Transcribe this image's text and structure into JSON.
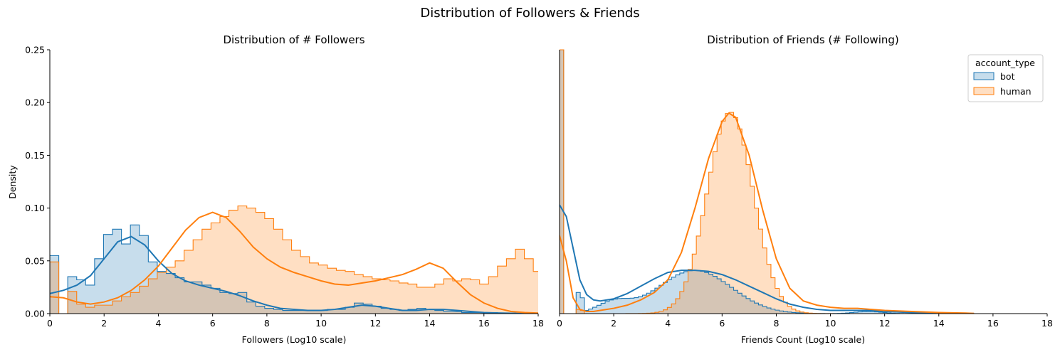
{
  "figure": {
    "suptitle": "Distribution of Followers & Friends"
  },
  "colors": {
    "bot": "#1f77b4",
    "human": "#ff7f0e",
    "bot_fill": "#c4d9ec",
    "human_fill": "#fedcbe"
  },
  "chart_data": [
    {
      "type": "area",
      "title": "Distribution of # Followers",
      "xlabel": "Followers (Log10 scale)",
      "ylabel": "Density",
      "xlim": [
        0,
        18
      ],
      "ylim": [
        0,
        0.25
      ],
      "xticks": [
        0,
        2,
        4,
        6,
        8,
        10,
        12,
        14,
        16,
        18
      ],
      "yticks": [
        "0.00",
        "0.05",
        "0.10",
        "0.15",
        "0.20",
        "0.25"
      ],
      "bin_width": 0.33,
      "series": [
        {
          "name": "bot",
          "kind": "histogram+kde",
          "hist": [
            0.055,
            0,
            0.035,
            0.032,
            0.027,
            0.052,
            0.075,
            0.08,
            0.066,
            0.084,
            0.074,
            0.049,
            0.04,
            0.038,
            0.034,
            0.03,
            0.03,
            0.027,
            0.024,
            0.02,
            0.019,
            0.02,
            0.011,
            0.007,
            0.005,
            0.004,
            0.003,
            0.003,
            0.003,
            0.003,
            0.003,
            0.004,
            0.004,
            0.006,
            0.01,
            0.009,
            0.007,
            0.005,
            0.004,
            0.003,
            0.004,
            0.005,
            0.004,
            0.003,
            0.002,
            0.002,
            0.001,
            0.001,
            0.001,
            0.001,
            0.0005,
            0.0005,
            0.0003,
            0.0002
          ],
          "kde_x": [
            0,
            0.5,
            1,
            1.5,
            2,
            2.5,
            3,
            3.5,
            4,
            4.5,
            5,
            5.5,
            6,
            6.5,
            7,
            7.5,
            8,
            8.5,
            9,
            9.5,
            10,
            10.5,
            11,
            11.5,
            12,
            12.5,
            13,
            13.5,
            14,
            14.5,
            15,
            15.5,
            16,
            16.5,
            17,
            17.5,
            18
          ],
          "kde_y": [
            0.019,
            0.022,
            0.027,
            0.036,
            0.052,
            0.068,
            0.073,
            0.065,
            0.05,
            0.038,
            0.031,
            0.027,
            0.024,
            0.021,
            0.017,
            0.012,
            0.008,
            0.005,
            0.004,
            0.003,
            0.003,
            0.004,
            0.006,
            0.008,
            0.007,
            0.005,
            0.003,
            0.003,
            0.004,
            0.004,
            0.003,
            0.002,
            0.001,
            0.0006,
            0.0003,
            0.0001,
            5e-05
          ]
        },
        {
          "name": "human",
          "kind": "histogram+kde",
          "hist": [
            0.049,
            0,
            0.021,
            0.009,
            0.006,
            0.008,
            0.008,
            0.012,
            0.016,
            0.02,
            0.026,
            0.033,
            0.039,
            0.044,
            0.05,
            0.06,
            0.07,
            0.08,
            0.086,
            0.092,
            0.098,
            0.102,
            0.1,
            0.096,
            0.09,
            0.08,
            0.07,
            0.06,
            0.054,
            0.048,
            0.046,
            0.043,
            0.041,
            0.04,
            0.037,
            0.035,
            0.033,
            0.032,
            0.031,
            0.029,
            0.028,
            0.025,
            0.025,
            0.028,
            0.033,
            0.031,
            0.033,
            0.032,
            0.028,
            0.035,
            0.045,
            0.052,
            0.061,
            0.052,
            0.04,
            0.029,
            0.02,
            0.015,
            0.013,
            0.01,
            0.008,
            0.006,
            0.004,
            0.003,
            0.002,
            0.001,
            0.001,
            0.001,
            0.0005,
            0.0005
          ],
          "kde_x": [
            0,
            0.5,
            1,
            1.5,
            2,
            2.5,
            3,
            3.5,
            4,
            4.5,
            5,
            5.5,
            6,
            6.5,
            7,
            7.5,
            8,
            8.5,
            9,
            9.5,
            10,
            10.5,
            11,
            11.5,
            12,
            12.5,
            13,
            13.5,
            14,
            14.5,
            15,
            15.5,
            16,
            16.5,
            17,
            17.5,
            18
          ],
          "kde_y": [
            0.016,
            0.015,
            0.011,
            0.009,
            0.011,
            0.015,
            0.022,
            0.032,
            0.045,
            0.062,
            0.079,
            0.091,
            0.096,
            0.091,
            0.078,
            0.063,
            0.052,
            0.044,
            0.039,
            0.035,
            0.031,
            0.028,
            0.027,
            0.029,
            0.031,
            0.034,
            0.037,
            0.042,
            0.048,
            0.043,
            0.03,
            0.018,
            0.01,
            0.005,
            0.002,
            0.001,
            0.0005
          ]
        }
      ]
    },
    {
      "type": "area",
      "title": "Distribution of Friends (# Following)",
      "xlabel": "Friends Count (Log10 scale)",
      "ylabel": "",
      "xlim": [
        0,
        18
      ],
      "ylim": [
        0,
        0.25
      ],
      "xticks": [
        0,
        2,
        4,
        6,
        8,
        10,
        12,
        14,
        16,
        18
      ],
      "bin_width": 0.153,
      "zero_bin_height": 0.3,
      "legend": {
        "title": "account_type",
        "placement": "top-right",
        "entries": [
          "bot",
          "human"
        ]
      },
      "series": [
        {
          "name": "bot",
          "kind": "histogram+kde",
          "peak": {
            "center": 5.0,
            "sd": 1.35,
            "height": 0.041
          },
          "tail_bump": {
            "center": 11.4,
            "sd": 0.5,
            "height": 0.002
          },
          "kde_x": [
            0,
            0.25,
            0.5,
            0.75,
            1,
            1.25,
            1.5,
            2,
            2.5,
            3,
            3.5,
            4,
            4.5,
            5,
            5.5,
            6,
            6.5,
            7,
            7.5,
            8,
            8.5,
            9,
            9.5,
            10,
            10.5,
            11,
            11.5,
            12,
            13,
            14,
            15,
            15.3
          ],
          "kde_y": [
            0.103,
            0.092,
            0.062,
            0.032,
            0.018,
            0.013,
            0.012,
            0.014,
            0.019,
            0.026,
            0.033,
            0.039,
            0.041,
            0.041,
            0.04,
            0.037,
            0.032,
            0.026,
            0.02,
            0.014,
            0.009,
            0.006,
            0.004,
            0.003,
            0.003,
            0.003,
            0.003,
            0.002,
            0.001,
            0.0005,
            0.0002,
            0.0001
          ]
        },
        {
          "name": "human",
          "kind": "histogram+kde",
          "peak": {
            "center": 6.3,
            "sd": 0.85,
            "height": 0.191
          },
          "kde_x": [
            0,
            0.25,
            0.5,
            0.75,
            1,
            1.25,
            1.5,
            2,
            2.5,
            3,
            3.5,
            4,
            4.5,
            5,
            5.5,
            6,
            6.25,
            6.5,
            7,
            7.5,
            8,
            8.5,
            9,
            9.5,
            10,
            10.5,
            11,
            11.5,
            12,
            13,
            14,
            15,
            15.3
          ],
          "kde_y": [
            0.074,
            0.05,
            0.015,
            0.004,
            0.002,
            0.002,
            0.003,
            0.005,
            0.008,
            0.013,
            0.02,
            0.032,
            0.058,
            0.1,
            0.147,
            0.182,
            0.19,
            0.186,
            0.15,
            0.098,
            0.052,
            0.024,
            0.012,
            0.008,
            0.006,
            0.005,
            0.005,
            0.004,
            0.003,
            0.002,
            0.001,
            0.0005,
            0.0002
          ]
        }
      ]
    }
  ]
}
